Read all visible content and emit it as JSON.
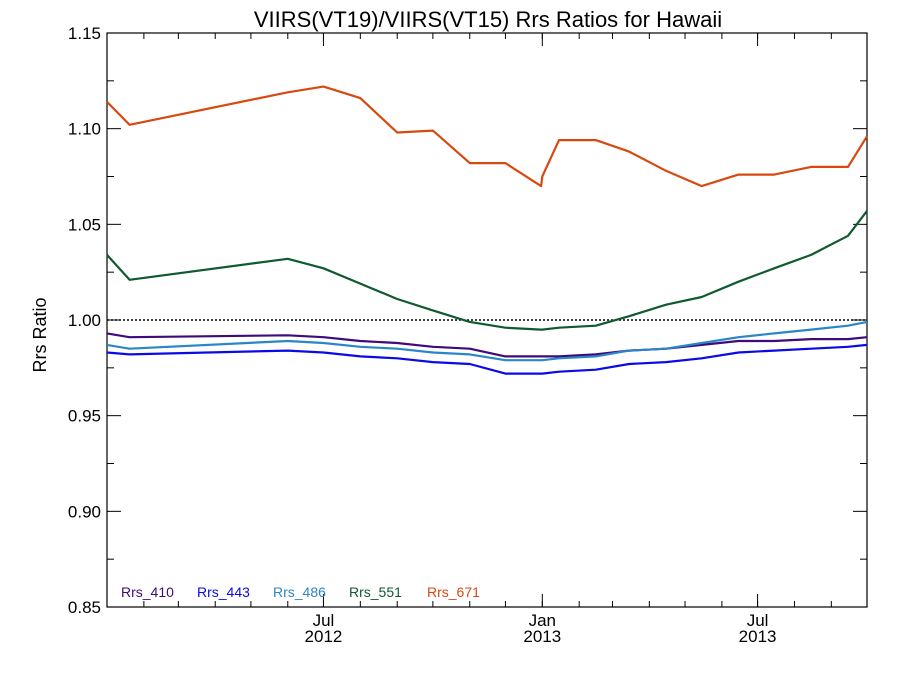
{
  "chart_data": {
    "type": "line",
    "title": "VIIRS(VT19)/VIIRS(VT15)  Rrs Ratios for Hawaii",
    "xlabel": "",
    "ylabel": "Rrs Ratio",
    "xlim": [
      "2012-01-01",
      "2013-10-01"
    ],
    "ylim": [
      0.85,
      1.15
    ],
    "yticks": [
      "0.85",
      "0.90",
      "0.95",
      "1.00",
      "1.05",
      "1.10",
      "1.15"
    ],
    "xticks": [
      {
        "date": "2012-07-01",
        "labels": [
          "Jul",
          "2012"
        ]
      },
      {
        "date": "2013-01-01",
        "labels": [
          "Jan",
          "2013"
        ]
      },
      {
        "date": "2013-07-01",
        "labels": [
          "Jul",
          "2013"
        ]
      }
    ],
    "reference_line": 1.0,
    "legend_position": "bottom-left",
    "grid": false,
    "x": [
      "2012-01-01",
      "2012-01-20",
      "2012-06-01",
      "2012-07-01",
      "2012-08-01",
      "2012-09-01",
      "2012-10-01",
      "2012-11-01",
      "2012-12-01",
      "2012-12-31",
      "2013-01-01",
      "2013-01-15",
      "2013-02-15",
      "2013-03-15",
      "2013-04-15",
      "2013-05-15",
      "2013-06-15",
      "2013-07-15",
      "2013-08-15",
      "2013-09-15",
      "2013-10-01"
    ],
    "series": [
      {
        "name": "Rrs_410",
        "color": "#3d0b7a",
        "values": [
          0.993,
          0.991,
          0.992,
          0.991,
          0.989,
          0.988,
          0.986,
          0.985,
          0.981,
          0.981,
          0.981,
          0.981,
          0.982,
          0.984,
          0.985,
          0.987,
          0.989,
          0.989,
          0.99,
          0.99,
          0.991
        ]
      },
      {
        "name": "Rrs_443",
        "color": "#0a0ae6",
        "values": [
          0.983,
          0.982,
          0.984,
          0.983,
          0.981,
          0.98,
          0.978,
          0.977,
          0.972,
          0.972,
          0.972,
          0.973,
          0.974,
          0.977,
          0.978,
          0.98,
          0.983,
          0.984,
          0.985,
          0.986,
          0.987
        ]
      },
      {
        "name": "Rrs_486",
        "color": "#2a86c8",
        "values": [
          0.987,
          0.985,
          0.989,
          0.988,
          0.986,
          0.985,
          0.983,
          0.982,
          0.979,
          0.979,
          0.979,
          0.98,
          0.981,
          0.984,
          0.985,
          0.988,
          0.991,
          0.993,
          0.995,
          0.997,
          0.999
        ]
      },
      {
        "name": "Rrs_551",
        "color": "#0f5a2e",
        "values": [
          1.034,
          1.021,
          1.032,
          1.027,
          1.019,
          1.011,
          1.005,
          0.999,
          0.996,
          0.995,
          0.995,
          0.996,
          0.997,
          1.002,
          1.008,
          1.012,
          1.02,
          1.027,
          1.034,
          1.044,
          1.057
        ]
      },
      {
        "name": "Rrs_671",
        "color": "#d9480f",
        "values": [
          1.114,
          1.102,
          1.119,
          1.122,
          1.116,
          1.098,
          1.099,
          1.082,
          1.082,
          1.07,
          1.075,
          1.094,
          1.094,
          1.088,
          1.078,
          1.07,
          1.076,
          1.076,
          1.08,
          1.08,
          1.096
        ]
      }
    ]
  }
}
